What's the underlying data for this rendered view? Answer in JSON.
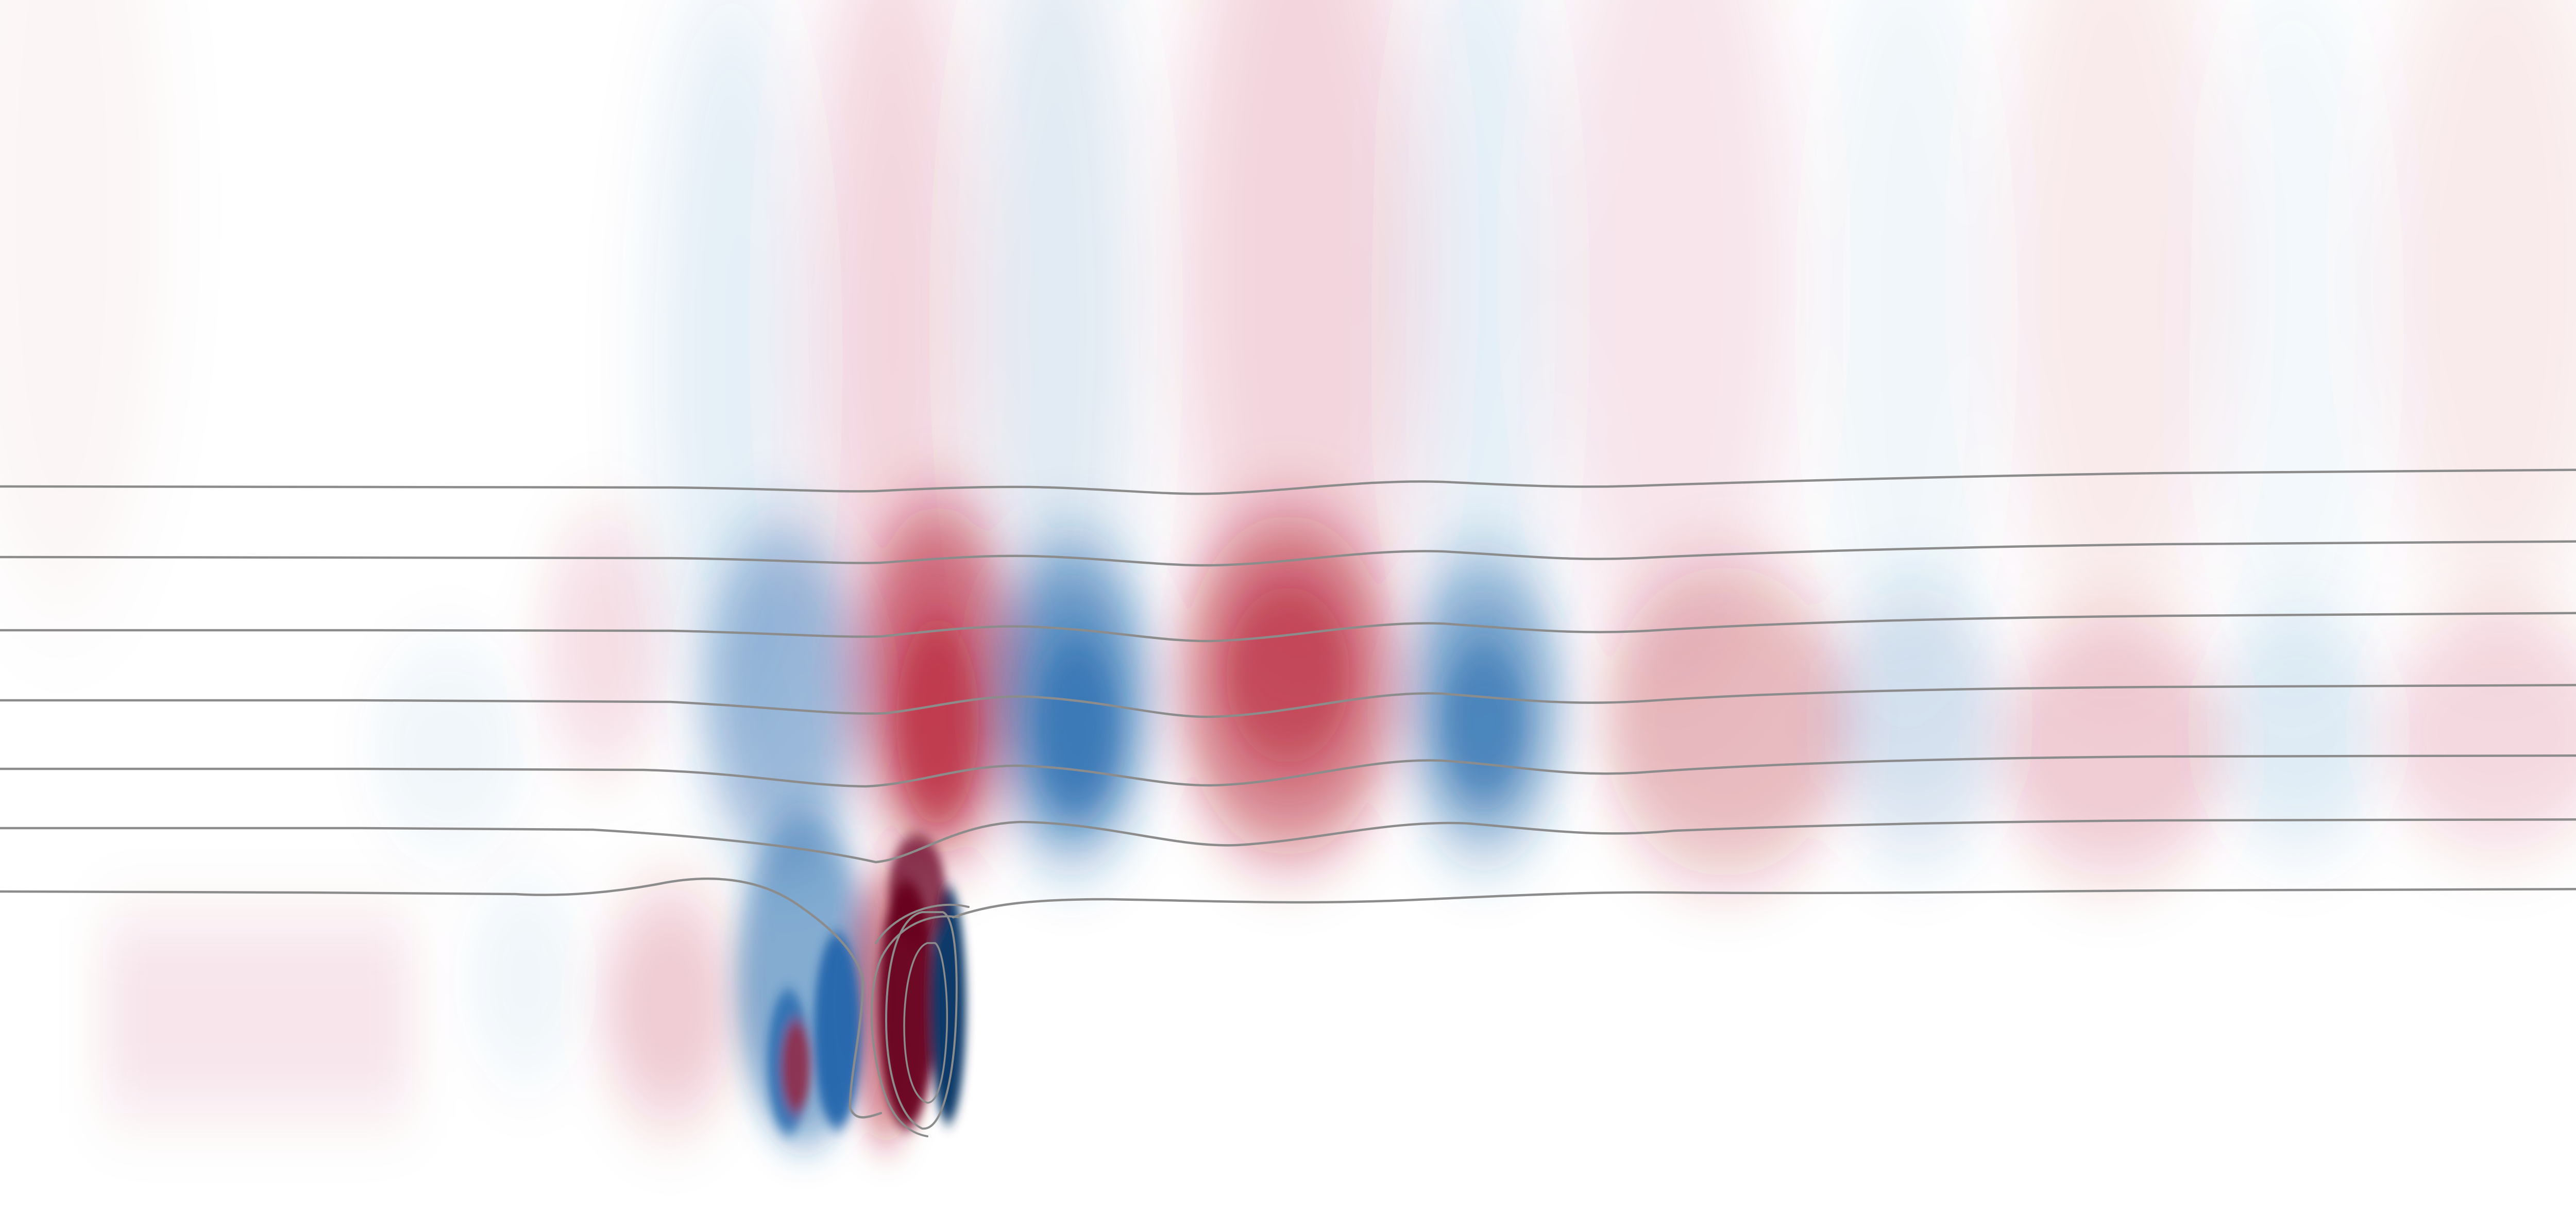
{
  "figure": {
    "colormap": {
      "name": "diverging-red-blue",
      "positive_color": "#b2182b",
      "positive_extreme": "#67001f",
      "negative_color": "#2166ac",
      "negative_extreme": "#053061",
      "neutral_color": "#ffffff"
    },
    "contour_color": "#8c8c8c",
    "background_color": "#ffffff"
  }
}
